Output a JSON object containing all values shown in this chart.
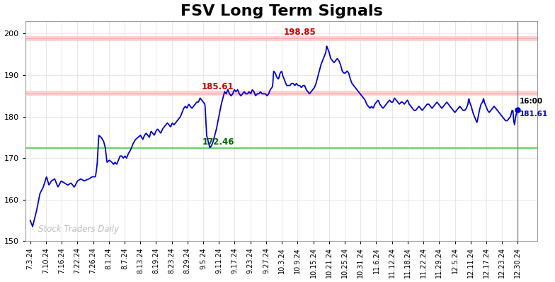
{
  "title": "FSV Long Term Signals",
  "title_fontsize": 16,
  "background_color": "#ffffff",
  "plot_bg_color": "#ffffff",
  "line_color": "#0000cc",
  "line_width": 1.3,
  "ylim": [
    150,
    203
  ],
  "yticks": [
    150,
    160,
    170,
    180,
    190,
    200
  ],
  "resistance_high": 198.85,
  "resistance_low": 185.61,
  "support": 172.46,
  "label_resistance_high": "198.85",
  "label_resistance_low": "185.61",
  "label_support": "172.46",
  "label_resistance_high_color": "#cc0000",
  "label_resistance_low_color": "#cc0000",
  "label_support_color": "#006600",
  "last_price": 181.61,
  "last_time_label": "16:00",
  "watermark": "Stock Traders Daily",
  "watermark_color": "#bbbbbb",
  "xtick_labels": [
    "7.3.24",
    "7.10.24",
    "7.16.24",
    "7.22.24",
    "7.26.24",
    "8.1.24",
    "8.7.24",
    "8.13.24",
    "8.19.24",
    "8.23.24",
    "8.29.24",
    "9.5.24",
    "9.11.24",
    "9.17.24",
    "9.23.24",
    "9.27.24",
    "10.3.24",
    "10.9.24",
    "10.15.24",
    "10.21.24",
    "10.25.24",
    "10.31.24",
    "11.6.24",
    "11.12.24",
    "11.18.24",
    "11.22.24",
    "11.29.24",
    "12.5.24",
    "12.11.24",
    "12.17.24",
    "12.23.24",
    "12.30.24"
  ],
  "key_points": [
    [
      0.0,
      155.0
    ],
    [
      0.15,
      153.5
    ],
    [
      0.4,
      157.5
    ],
    [
      0.6,
      161.5
    ],
    [
      0.8,
      163.0
    ],
    [
      1.0,
      165.5
    ],
    [
      1.15,
      163.5
    ],
    [
      1.3,
      164.5
    ],
    [
      1.5,
      165.0
    ],
    [
      1.7,
      163.0
    ],
    [
      1.9,
      164.5
    ],
    [
      2.1,
      164.0
    ],
    [
      2.3,
      163.5
    ],
    [
      2.5,
      164.0
    ],
    [
      2.7,
      163.0
    ],
    [
      2.9,
      164.5
    ],
    [
      3.1,
      165.0
    ],
    [
      3.3,
      164.5
    ],
    [
      3.6,
      165.0
    ],
    [
      3.8,
      165.5
    ],
    [
      4.0,
      165.5
    ],
    [
      4.1,
      168.5
    ],
    [
      4.2,
      175.5
    ],
    [
      4.35,
      175.0
    ],
    [
      4.5,
      174.0
    ],
    [
      4.6,
      172.5
    ],
    [
      4.7,
      169.0
    ],
    [
      4.85,
      169.5
    ],
    [
      5.0,
      169.0
    ],
    [
      5.1,
      168.5
    ],
    [
      5.2,
      169.0
    ],
    [
      5.3,
      168.5
    ],
    [
      5.4,
      169.5
    ],
    [
      5.5,
      170.5
    ],
    [
      5.6,
      170.5
    ],
    [
      5.7,
      170.0
    ],
    [
      5.8,
      170.5
    ],
    [
      5.9,
      170.0
    ],
    [
      6.0,
      171.0
    ],
    [
      6.15,
      172.0
    ],
    [
      6.3,
      173.5
    ],
    [
      6.45,
      174.5
    ],
    [
      6.6,
      175.0
    ],
    [
      6.75,
      175.5
    ],
    [
      6.9,
      174.5
    ],
    [
      7.0,
      175.5
    ],
    [
      7.1,
      176.0
    ],
    [
      7.2,
      175.5
    ],
    [
      7.3,
      175.0
    ],
    [
      7.4,
      176.5
    ],
    [
      7.5,
      176.0
    ],
    [
      7.6,
      175.5
    ],
    [
      7.7,
      176.5
    ],
    [
      7.8,
      177.0
    ],
    [
      7.9,
      176.5
    ],
    [
      8.0,
      176.0
    ],
    [
      8.1,
      177.0
    ],
    [
      8.2,
      177.5
    ],
    [
      8.3,
      178.0
    ],
    [
      8.4,
      178.5
    ],
    [
      8.5,
      178.0
    ],
    [
      8.6,
      177.5
    ],
    [
      8.7,
      178.5
    ],
    [
      8.8,
      178.0
    ],
    [
      8.9,
      178.5
    ],
    [
      9.0,
      179.0
    ],
    [
      9.1,
      179.5
    ],
    [
      9.2,
      180.0
    ],
    [
      9.3,
      181.0
    ],
    [
      9.4,
      182.0
    ],
    [
      9.5,
      182.5
    ],
    [
      9.6,
      182.0
    ],
    [
      9.7,
      183.0
    ],
    [
      9.8,
      182.5
    ],
    [
      9.9,
      182.0
    ],
    [
      10.0,
      182.5
    ],
    [
      10.1,
      183.0
    ],
    [
      10.2,
      183.5
    ],
    [
      10.3,
      183.5
    ],
    [
      10.4,
      184.5
    ],
    [
      10.5,
      184.0
    ],
    [
      10.6,
      183.5
    ],
    [
      10.7,
      183.0
    ],
    [
      10.8,
      175.5
    ],
    [
      11.0,
      172.5
    ],
    [
      11.1,
      173.0
    ],
    [
      11.2,
      174.0
    ],
    [
      11.3,
      175.5
    ],
    [
      11.4,
      177.0
    ],
    [
      11.5,
      179.0
    ],
    [
      11.6,
      181.0
    ],
    [
      11.7,
      183.0
    ],
    [
      11.8,
      184.5
    ],
    [
      11.9,
      186.0
    ],
    [
      12.0,
      185.5
    ],
    [
      12.1,
      186.5
    ],
    [
      12.2,
      185.5
    ],
    [
      12.3,
      185.0
    ],
    [
      12.4,
      185.5
    ],
    [
      12.5,
      186.5
    ],
    [
      12.6,
      186.0
    ],
    [
      12.7,
      186.5
    ],
    [
      12.8,
      185.5
    ],
    [
      12.9,
      185.0
    ],
    [
      13.0,
      185.5
    ],
    [
      13.1,
      186.0
    ],
    [
      13.2,
      185.5
    ],
    [
      13.3,
      185.5
    ],
    [
      13.4,
      186.0
    ],
    [
      13.5,
      185.5
    ],
    [
      13.6,
      186.5
    ],
    [
      13.7,
      186.0
    ],
    [
      13.8,
      185.0
    ],
    [
      13.9,
      185.5
    ],
    [
      14.0,
      185.5
    ],
    [
      14.1,
      186.0
    ],
    [
      14.2,
      185.5
    ],
    [
      14.3,
      185.5
    ],
    [
      14.4,
      185.5
    ],
    [
      14.5,
      185.0
    ],
    [
      14.6,
      185.5
    ],
    [
      14.7,
      186.5
    ],
    [
      14.8,
      187.0
    ],
    [
      14.85,
      187.5
    ],
    [
      14.9,
      191.0
    ],
    [
      15.0,
      190.5
    ],
    [
      15.1,
      189.5
    ],
    [
      15.2,
      189.0
    ],
    [
      15.3,
      190.5
    ],
    [
      15.4,
      191.0
    ],
    [
      15.45,
      190.0
    ],
    [
      15.5,
      189.5
    ],
    [
      15.6,
      188.5
    ],
    [
      15.7,
      187.5
    ],
    [
      15.8,
      187.5
    ],
    [
      15.9,
      187.5
    ],
    [
      16.0,
      188.0
    ],
    [
      16.1,
      188.0
    ],
    [
      16.2,
      187.5
    ],
    [
      16.3,
      188.0
    ],
    [
      16.4,
      187.5
    ],
    [
      16.5,
      187.5
    ],
    [
      16.6,
      187.0
    ],
    [
      16.7,
      187.5
    ],
    [
      16.8,
      187.5
    ],
    [
      16.9,
      186.5
    ],
    [
      17.0,
      186.0
    ],
    [
      17.1,
      185.5
    ],
    [
      17.2,
      186.0
    ],
    [
      17.3,
      186.5
    ],
    [
      17.4,
      187.0
    ],
    [
      17.5,
      188.0
    ],
    [
      17.6,
      189.5
    ],
    [
      17.7,
      191.0
    ],
    [
      17.8,
      192.5
    ],
    [
      17.9,
      193.5
    ],
    [
      18.0,
      194.5
    ],
    [
      18.1,
      195.5
    ],
    [
      18.15,
      197.0
    ],
    [
      18.2,
      196.5
    ],
    [
      18.3,
      195.5
    ],
    [
      18.4,
      194.0
    ],
    [
      18.5,
      193.5
    ],
    [
      18.6,
      193.0
    ],
    [
      18.7,
      193.5
    ],
    [
      18.8,
      194.0
    ],
    [
      18.9,
      193.5
    ],
    [
      19.0,
      192.5
    ],
    [
      19.1,
      191.0
    ],
    [
      19.2,
      190.5
    ],
    [
      19.3,
      190.5
    ],
    [
      19.4,
      191.0
    ],
    [
      19.5,
      190.5
    ],
    [
      19.6,
      189.0
    ],
    [
      19.7,
      188.0
    ],
    [
      19.8,
      187.5
    ],
    [
      19.9,
      187.0
    ],
    [
      20.0,
      186.5
    ],
    [
      20.1,
      186.0
    ],
    [
      20.2,
      185.5
    ],
    [
      20.3,
      185.0
    ],
    [
      20.4,
      184.5
    ],
    [
      20.5,
      184.0
    ],
    [
      20.6,
      183.0
    ],
    [
      20.7,
      182.5
    ],
    [
      20.8,
      182.0
    ],
    [
      20.9,
      182.5
    ],
    [
      21.0,
      182.0
    ],
    [
      21.1,
      183.0
    ],
    [
      21.2,
      183.5
    ],
    [
      21.3,
      184.0
    ],
    [
      21.4,
      183.0
    ],
    [
      21.5,
      182.5
    ],
    [
      21.6,
      182.0
    ],
    [
      21.7,
      182.5
    ],
    [
      21.8,
      183.0
    ],
    [
      21.9,
      183.5
    ],
    [
      22.0,
      184.0
    ],
    [
      22.1,
      183.5
    ],
    [
      22.2,
      183.5
    ],
    [
      22.3,
      184.5
    ],
    [
      22.4,
      184.0
    ],
    [
      22.5,
      183.5
    ],
    [
      22.6,
      183.0
    ],
    [
      22.7,
      183.5
    ],
    [
      22.8,
      183.5
    ],
    [
      22.9,
      183.0
    ],
    [
      23.0,
      183.5
    ],
    [
      23.1,
      184.0
    ],
    [
      23.2,
      183.0
    ],
    [
      23.3,
      182.5
    ],
    [
      23.4,
      182.0
    ],
    [
      23.5,
      181.5
    ],
    [
      23.6,
      181.5
    ],
    [
      23.7,
      182.0
    ],
    [
      23.8,
      182.5
    ],
    [
      23.9,
      182.0
    ],
    [
      24.0,
      181.5
    ],
    [
      24.1,
      182.0
    ],
    [
      24.2,
      182.5
    ],
    [
      24.3,
      183.0
    ],
    [
      24.4,
      183.0
    ],
    [
      24.5,
      182.5
    ],
    [
      24.6,
      182.0
    ],
    [
      24.7,
      182.5
    ],
    [
      24.8,
      183.0
    ],
    [
      24.9,
      183.5
    ],
    [
      25.0,
      183.0
    ],
    [
      25.1,
      182.5
    ],
    [
      25.2,
      182.0
    ],
    [
      25.3,
      182.5
    ],
    [
      25.4,
      183.0
    ],
    [
      25.5,
      183.5
    ],
    [
      25.6,
      183.0
    ],
    [
      25.7,
      182.5
    ],
    [
      25.8,
      182.0
    ],
    [
      25.9,
      181.5
    ],
    [
      26.0,
      181.0
    ],
    [
      26.1,
      181.5
    ],
    [
      26.2,
      182.0
    ],
    [
      26.3,
      182.5
    ],
    [
      26.4,
      182.0
    ],
    [
      26.5,
      181.5
    ],
    [
      26.6,
      181.5
    ],
    [
      26.7,
      182.0
    ],
    [
      26.8,
      183.0
    ],
    [
      26.85,
      184.5
    ],
    [
      26.9,
      183.5
    ],
    [
      27.0,
      182.5
    ],
    [
      27.1,
      181.0
    ],
    [
      27.2,
      180.0
    ],
    [
      27.3,
      179.0
    ],
    [
      27.35,
      178.5
    ],
    [
      27.4,
      179.5
    ],
    [
      27.5,
      181.5
    ],
    [
      27.6,
      183.0
    ],
    [
      27.7,
      183.5
    ],
    [
      27.75,
      184.5
    ],
    [
      27.8,
      183.5
    ],
    [
      27.9,
      182.5
    ],
    [
      28.0,
      181.5
    ],
    [
      28.1,
      181.0
    ],
    [
      28.2,
      181.5
    ],
    [
      28.3,
      182.0
    ],
    [
      28.4,
      182.5
    ],
    [
      28.5,
      182.0
    ],
    [
      28.6,
      181.5
    ],
    [
      28.7,
      181.0
    ],
    [
      28.8,
      180.5
    ],
    [
      28.9,
      180.0
    ],
    [
      29.0,
      179.5
    ],
    [
      29.1,
      179.0
    ],
    [
      29.2,
      179.0
    ],
    [
      29.3,
      179.5
    ],
    [
      29.4,
      180.0
    ],
    [
      29.5,
      181.5
    ],
    [
      29.55,
      181.5
    ],
    [
      29.6,
      179.0
    ],
    [
      29.65,
      178.0
    ],
    [
      29.7,
      179.5
    ],
    [
      29.8,
      181.5
    ],
    [
      29.85,
      181.61
    ]
  ]
}
